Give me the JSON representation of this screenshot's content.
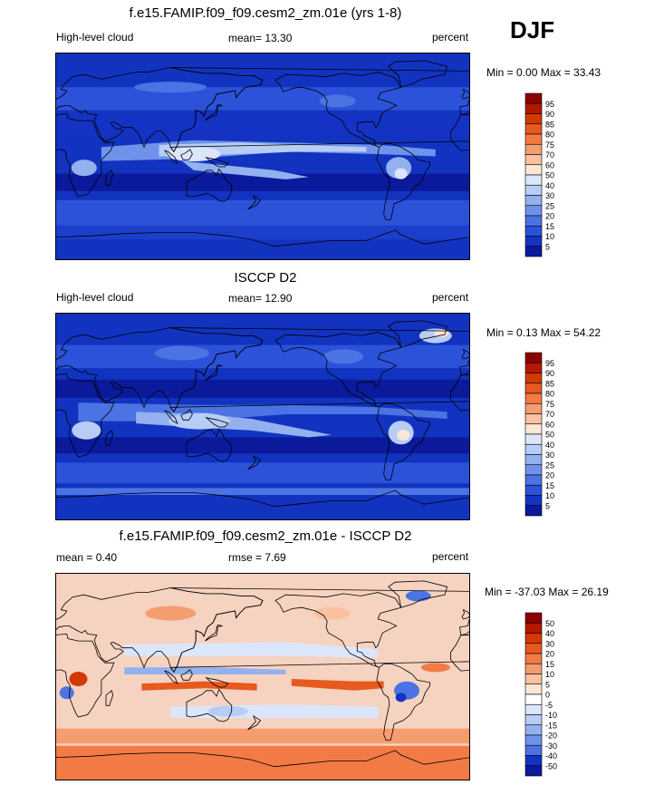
{
  "season": "DJF",
  "panels": [
    {
      "title": "f.e15.FAMIP.f09_f09.cesm2_zm.01e (yrs 1-8)",
      "left": "High-level cloud",
      "center": "mean=  13.30",
      "right": "percent",
      "minmax": "Min =   0.00 Max =  33.43",
      "colorbar": {
        "labels": [
          "95",
          "90",
          "85",
          "80",
          "75",
          "70",
          "60",
          "50",
          "40",
          "30",
          "25",
          "20",
          "15",
          "10",
          "5"
        ],
        "colors": [
          "#8b0000",
          "#b51800",
          "#d43a00",
          "#e8591f",
          "#f27b45",
          "#f69d70",
          "#f9c1a0",
          "#fde6d6",
          "#dbe6fb",
          "#b7cdf6",
          "#93b1ef",
          "#6f93ea",
          "#4c73e3",
          "#2b52d8",
          "#1433c4",
          "#0a1a9a"
        ]
      },
      "ocean_color": "#0f2fb6",
      "map_type": "model"
    },
    {
      "title": "ISCCP D2",
      "left": "High-level cloud",
      "center": "mean=  12.90",
      "right": "percent",
      "minmax": "Min =   0.13 Max =  54.22",
      "colorbar": {
        "labels": [
          "95",
          "90",
          "85",
          "80",
          "75",
          "70",
          "60",
          "50",
          "40",
          "30",
          "25",
          "20",
          "15",
          "10",
          "5"
        ],
        "colors": [
          "#8b0000",
          "#b51800",
          "#d43a00",
          "#e8591f",
          "#f27b45",
          "#f69d70",
          "#f9c1a0",
          "#fde6d6",
          "#dbe6fb",
          "#b7cdf6",
          "#93b1ef",
          "#6f93ea",
          "#4c73e3",
          "#2b52d8",
          "#1433c4",
          "#0a1a9a"
        ]
      },
      "ocean_color": "#0f2fb6",
      "map_type": "obs"
    },
    {
      "title": "f.e15.FAMIP.f09_f09.cesm2_zm.01e - ISCCP D2",
      "left": "mean =   0.40",
      "center": "rmse =   7.69",
      "right": "percent",
      "minmax": "Min = -37.03 Max =  26.19",
      "colorbar": {
        "labels": [
          "50",
          "40",
          "30",
          "20",
          "15",
          "10",
          "5",
          "0",
          "-5",
          "-10",
          "-15",
          "-20",
          "-30",
          "-40",
          "-50"
        ],
        "colors": [
          "#8b0000",
          "#b51800",
          "#d43a00",
          "#e8591f",
          "#f27b45",
          "#f69d70",
          "#f9c1a0",
          "#fde6d6",
          "#ffffff",
          "#dbe6fb",
          "#b7cdf6",
          "#93b1ef",
          "#6f93ea",
          "#4c73e3",
          "#1433c4",
          "#0a1a9a"
        ]
      },
      "ocean_color": "#f6d2c0",
      "map_type": "diff"
    }
  ],
  "chart_data": [
    {
      "type": "heatmap",
      "title": "f.e15.FAMIP.f09_f09.cesm2_zm.01e (yrs 1-8)",
      "variable": "High-level cloud",
      "units": "percent",
      "mean": 13.3,
      "min": 0.0,
      "max": 33.43,
      "levels": [
        5,
        10,
        15,
        20,
        25,
        30,
        40,
        50,
        60,
        70,
        75,
        80,
        85,
        90,
        95
      ]
    },
    {
      "type": "heatmap",
      "title": "ISCCP D2",
      "variable": "High-level cloud",
      "units": "percent",
      "mean": 12.9,
      "min": 0.13,
      "max": 54.22,
      "levels": [
        5,
        10,
        15,
        20,
        25,
        30,
        40,
        50,
        60,
        70,
        75,
        80,
        85,
        90,
        95
      ]
    },
    {
      "type": "heatmap",
      "title": "f.e15.FAMIP.f09_f09.cesm2_zm.01e - ISCCP D2",
      "units": "percent",
      "mean": 0.4,
      "rmse": 7.69,
      "min": -37.03,
      "max": 26.19,
      "levels": [
        -50,
        -40,
        -30,
        -20,
        -15,
        -10,
        -5,
        0,
        5,
        10,
        15,
        20,
        30,
        40,
        50
      ]
    }
  ]
}
